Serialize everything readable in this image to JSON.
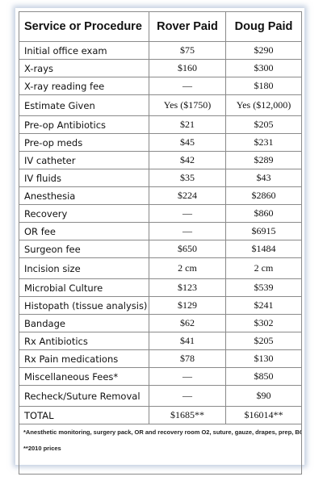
{
  "headers": {
    "service": "Service or Procedure",
    "rover": "Rover Paid",
    "doug": "Doug Paid"
  },
  "rows": [
    {
      "service": "Initial office exam",
      "rover": "$75",
      "doug": "$290"
    },
    {
      "service": "X-rays",
      "rover": "$160",
      "doug": "$300"
    },
    {
      "service": "X-ray reading fee",
      "rover": "—",
      "doug": "$180"
    },
    {
      "service": "Estimate Given",
      "rover": "Yes ($1750)",
      "doug": "Yes ($12,000)"
    },
    {
      "service": "Pre-op Antibiotics",
      "rover": "$21",
      "doug": "$205"
    },
    {
      "service": "Pre-op meds",
      "rover": "$45",
      "doug": "$231"
    },
    {
      "service": "IV catheter",
      "rover": "$42",
      "doug": "$289"
    },
    {
      "service": "IV fluids",
      "rover": "$35",
      "doug": "$43"
    },
    {
      "service": "Anesthesia",
      "rover": "$224",
      "doug": "$2860"
    },
    {
      "service": "Recovery",
      "rover": "—",
      "doug": "$860"
    },
    {
      "service": "OR fee",
      "rover": "—",
      "doug": "$6915"
    },
    {
      "service": "Surgeon fee",
      "rover": "$650",
      "doug": "$1484"
    },
    {
      "service": "Incision size",
      "rover": "2 cm",
      "doug": "2 cm"
    },
    {
      "service": "Microbial Culture",
      "rover": "$123",
      "doug": "$539"
    },
    {
      "service": "Histopath (tissue analysis)",
      "rover": "$129",
      "doug": "$241"
    },
    {
      "service": "Bandage",
      "rover": "$62",
      "doug": "$302"
    },
    {
      "service": "Rx Antibiotics",
      "rover": "$41",
      "doug": "$205"
    },
    {
      "service": "Rx Pain medications",
      "rover": "$78",
      "doug": "$130"
    },
    {
      "service": "Miscellaneous Fees*",
      "rover": "—",
      "doug": "$850"
    },
    {
      "service": "Recheck/Suture Removal",
      "rover": "—",
      "doug": "$90"
    },
    {
      "service": "TOTAL",
      "rover": "$1685**",
      "doug": "$16014**"
    }
  ],
  "footnotes": {
    "anesthetic": "*Anesthetic monitoring, surgery pack, OR and recovery room O2, suture, gauze, drapes, prep, BG, BP cuff, suction, sterile containers, Pulse Ox sensor, headrest pad.",
    "prices": "**2010 prices"
  }
}
